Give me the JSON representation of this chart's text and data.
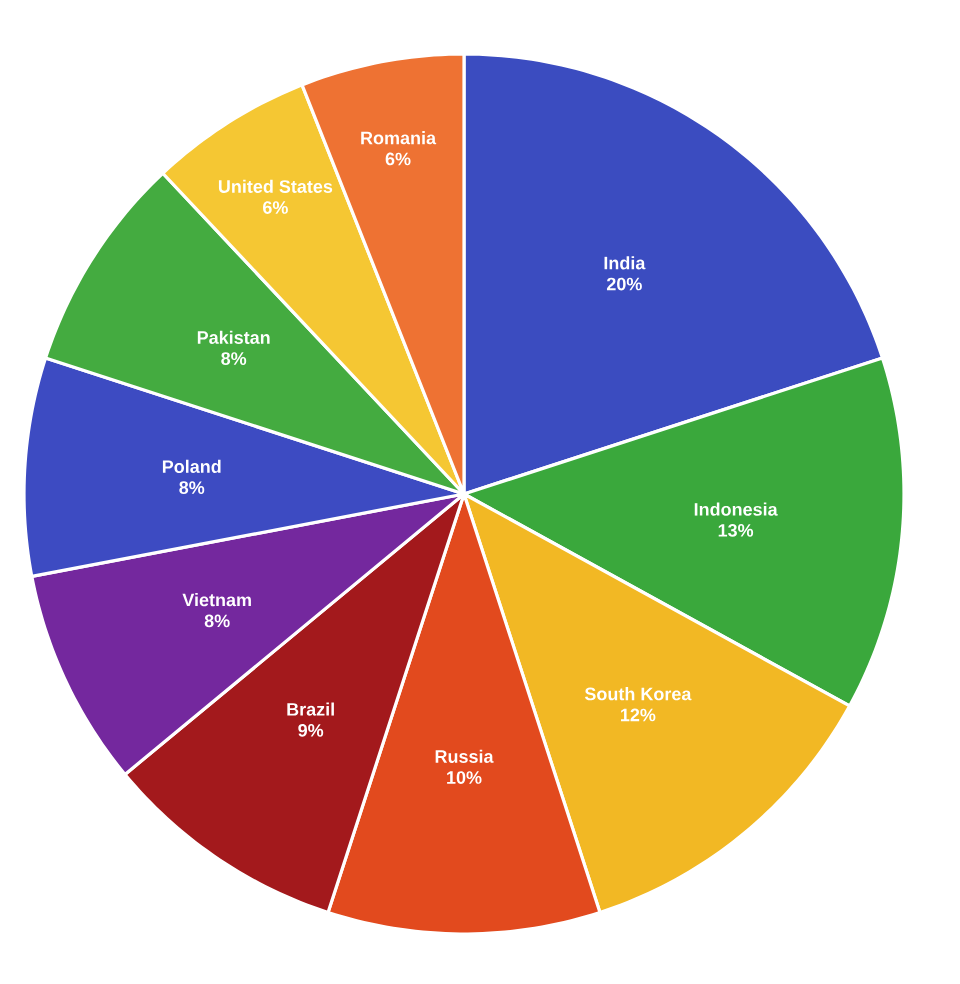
{
  "chart_data": {
    "type": "pie",
    "categories": [
      "India",
      "Indonesia",
      "South Korea",
      "Russia",
      "Brazil",
      "Vietnam",
      "Poland",
      "Pakistan",
      "United States",
      "Romania"
    ],
    "values": [
      20,
      13,
      12,
      10,
      9,
      8,
      8,
      8,
      6,
      6
    ],
    "value_labels": [
      "20%",
      "13%",
      "12%",
      "10%",
      "9%",
      "8%",
      "8%",
      "8%",
      "6%",
      "6%"
    ],
    "colors": [
      "#3b4cc0",
      "#3aa83c",
      "#f2b824",
      "#e24a1e",
      "#a3191c",
      "#74289e",
      "#3d4bc2",
      "#44ab40",
      "#f5c733",
      "#ee7233"
    ]
  }
}
